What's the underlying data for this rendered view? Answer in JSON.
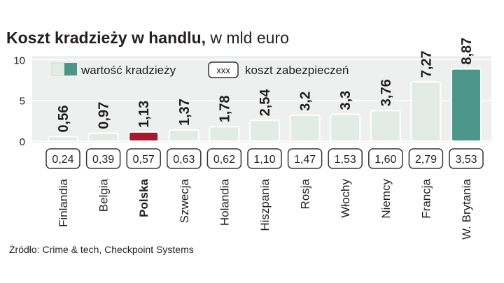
{
  "title_bold": "Koszt kradzieży w handlu,",
  "title_light": " w mld euro",
  "source": "Źródło: Crime & tech, Checkpoint Systems",
  "legend": {
    "theft_label": "wartość kradzieży",
    "cost_box": "xxx",
    "cost_label": "koszt zabezpieczeń"
  },
  "colors": {
    "bar_fill": "#e3ebe6",
    "bar_stroke": "#ffffff",
    "highlight_poland": "#a6192e",
    "highlight_uk": "#4a9688",
    "plot_bg": "#edf0ee",
    "text": "#231f20",
    "box_stroke": "#333333"
  },
  "chart_data": {
    "type": "bar",
    "categories": [
      "Finlandia",
      "Belgia",
      "Polska",
      "Szwecja",
      "Holandia",
      "Hiszpania",
      "Rosja",
      "Włochy",
      "Niemcy",
      "Francja",
      "W. Brytania"
    ],
    "highlight_category": "Polska",
    "series": [
      {
        "name": "wartość kradzieży",
        "values": [
          0.56,
          0.97,
          1.13,
          1.37,
          1.78,
          2.54,
          3.2,
          3.3,
          3.76,
          7.27,
          8.87
        ],
        "labels": [
          "0,56",
          "0,97",
          "1,13",
          "1,37",
          "1,78",
          "2,54",
          "3,2",
          "3,3",
          "3,76",
          "7,27",
          "8,87"
        ]
      },
      {
        "name": "koszt zabezpieczeń",
        "values": [
          0.24,
          0.39,
          0.57,
          0.63,
          0.62,
          1.1,
          1.47,
          1.53,
          1.6,
          2.79,
          3.53
        ],
        "labels": [
          "0,24",
          "0,39",
          "0,57",
          "0,63",
          "0,62",
          "1,10",
          "1,47",
          "1,53",
          "1,60",
          "2,79",
          "3,53"
        ]
      }
    ],
    "yticks": [
      "0",
      "5",
      "10"
    ],
    "ylim": [
      0,
      10
    ],
    "grid": true,
    "legend_position": "top-left"
  }
}
